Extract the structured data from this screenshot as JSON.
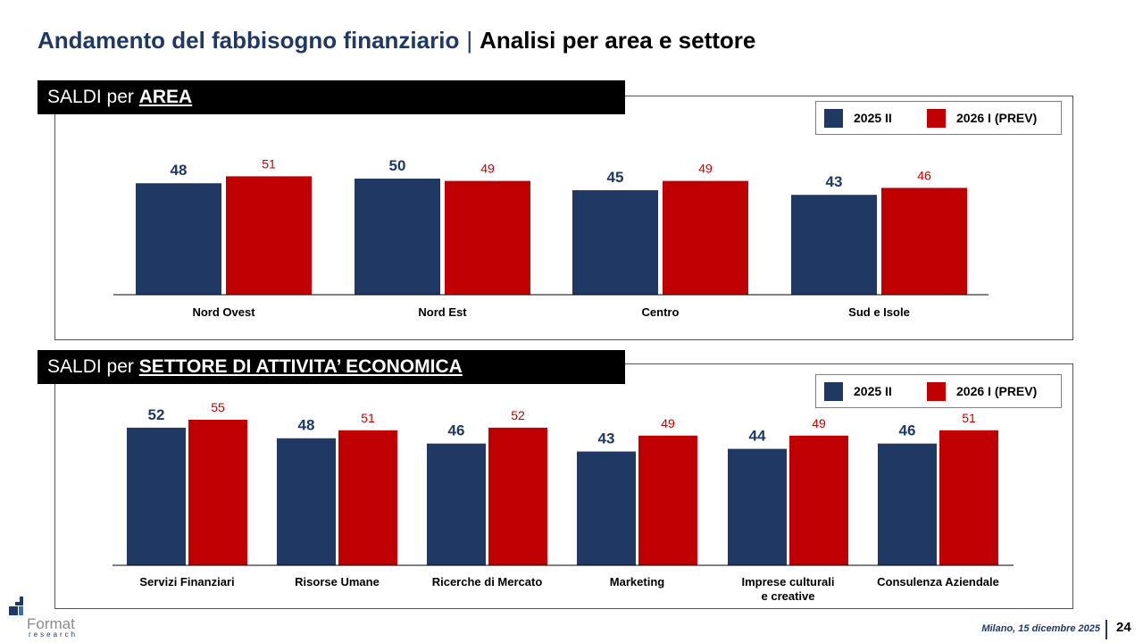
{
  "title": {
    "main": "Andamento del fabbisogno finanziario",
    "separator": "|",
    "sub": "Analisi per area e settore"
  },
  "colors": {
    "series_a": "#1f3864",
    "series_b": "#c00000"
  },
  "panels": {
    "area": {
      "banner_prefix": "SALDI per ",
      "banner_strong": "AREA"
    },
    "sector": {
      "banner_prefix": "SALDI per ",
      "banner_strong": "SETTORE DI ATTIVITA’ ECONOMICA"
    }
  },
  "legend": {
    "series_a": "2025 II",
    "series_b": "2026 I (PREV)"
  },
  "chart_data": [
    {
      "type": "bar",
      "title": "SALDI per AREA",
      "categories": [
        "Nord Ovest",
        "Nord Est",
        "Centro",
        "Sud e Isole"
      ],
      "series": [
        {
          "name": "2025 II",
          "values": [
            48,
            50,
            45,
            43
          ]
        },
        {
          "name": "2026 I (PREV)",
          "values": [
            51,
            49,
            49,
            46
          ]
        }
      ],
      "ylim": [
        0,
        60
      ],
      "grid": false,
      "legend_position": "top-right"
    },
    {
      "type": "bar",
      "title": "SALDI per SETTORE DI ATTIVITA’ ECONOMICA",
      "categories": [
        "Servizi Finanziari",
        "Risorse Umane",
        "Ricerche di Mercato",
        "Marketing",
        "Imprese culturali e creative",
        "Consulenza Aziendale"
      ],
      "series": [
        {
          "name": "2025 II",
          "values": [
            52,
            48,
            46,
            43,
            44,
            46
          ]
        },
        {
          "name": "2026 I (PREV)",
          "values": [
            55,
            51,
            52,
            49,
            49,
            51
          ]
        }
      ],
      "ylim": [
        0,
        60
      ],
      "grid": false,
      "legend_position": "top-right"
    }
  ],
  "logo": {
    "name": "Format",
    "tagline": "research"
  },
  "footer": {
    "date": "Milano, 15 dicembre 2025",
    "page": "24"
  }
}
